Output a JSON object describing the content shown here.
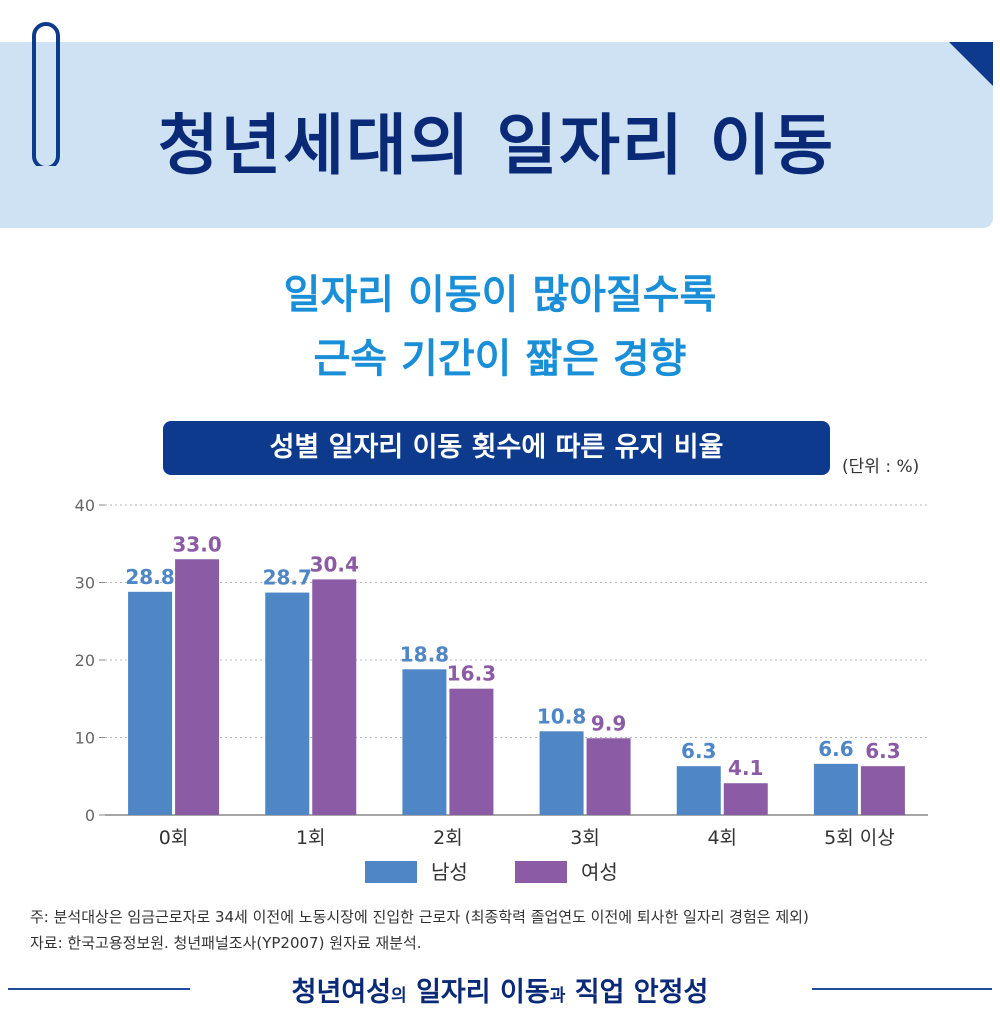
{
  "header": {
    "title": "청년세대의 일자리 이동"
  },
  "headline": {
    "line1": "일자리 이동이 많아질수록",
    "line2": "근속 기간이 짧은 경향"
  },
  "chart_box": {
    "title": "성별 일자리 이동 횟수에 따른 유지 비율",
    "unit": "(단위 : %)"
  },
  "colors": {
    "male": "#4e86c6",
    "female": "#8c5ba6",
    "male_label": "#4e86c6",
    "female_label": "#8c5ba6",
    "title_box": "#0d3a8c",
    "banner": "#cfe2f3",
    "headline": "#1a8fd8"
  },
  "chart_data": {
    "type": "bar",
    "categories": [
      "0회",
      "1회",
      "2회",
      "3회",
      "4회",
      "5회 이상"
    ],
    "series": [
      {
        "name": "남성",
        "values": [
          28.8,
          28.7,
          18.8,
          10.8,
          6.3,
          6.6
        ]
      },
      {
        "name": "여성",
        "values": [
          33.0,
          30.4,
          16.3,
          9.9,
          4.1,
          6.3
        ]
      }
    ],
    "ylim": [
      0,
      40
    ],
    "yticks": [
      0,
      10,
      20,
      30,
      40
    ],
    "grid": true,
    "legend": "bottom"
  },
  "notes": {
    "note1": "주: 분석대상은 임금근로자로 34세 이전에 노동시장에 진입한 근로자 (최종학력 졸업연도 이전에 퇴사한 일자리 경험은 제외)",
    "note2": "자료: 한국고용정보원. 청년패널조사(YP2007) 원자료 재분석."
  },
  "footer": {
    "part1": "청년여성",
    "part2": "의",
    "part3": " 일자리 이동",
    "part4": "과",
    "part5": " 직업 안정성"
  }
}
